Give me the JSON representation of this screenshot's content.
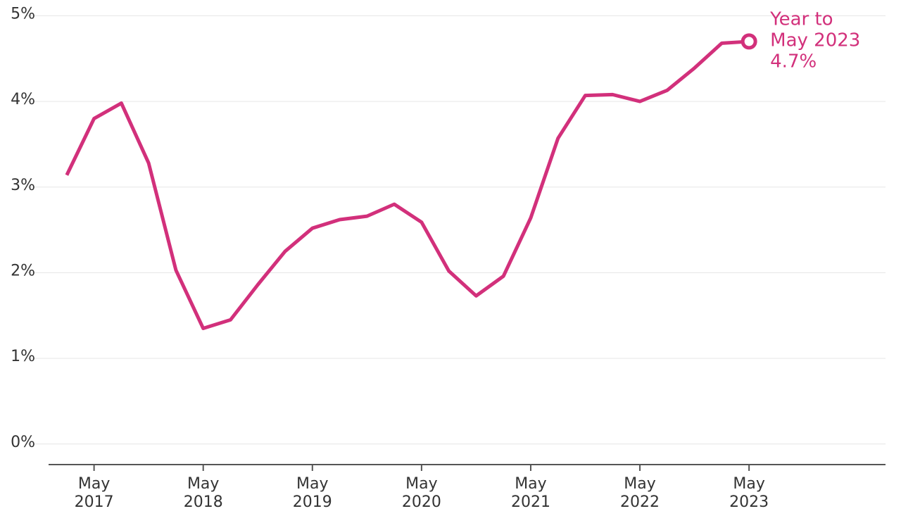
{
  "chart_data": {
    "type": "line",
    "x": [
      "2017-02",
      "2017-05",
      "2017-08",
      "2017-11",
      "2018-02",
      "2018-05",
      "2018-08",
      "2018-11",
      "2019-02",
      "2019-05",
      "2019-08",
      "2019-11",
      "2020-02",
      "2020-05",
      "2020-08",
      "2020-11",
      "2021-02",
      "2021-05",
      "2021-08",
      "2021-11",
      "2022-02",
      "2022-05",
      "2022-08",
      "2022-11",
      "2023-02",
      "2023-05"
    ],
    "series": [
      {
        "color": "#d2307b",
        "values": [
          3.14,
          3.8,
          3.98,
          3.28,
          2.03,
          1.35,
          1.45,
          1.86,
          2.25,
          2.52,
          2.62,
          2.66,
          2.8,
          2.59,
          2.02,
          1.73,
          1.96,
          2.64,
          3.57,
          4.07,
          4.08,
          4.0,
          4.13,
          4.39,
          4.68,
          4.7
        ]
      }
    ],
    "annotation": [
      "Year to",
      "May 2023",
      "4.7%"
    ],
    "xlim": [
      "2016-12",
      "2024-08"
    ],
    "xticks": [
      {
        "value": "2017-05",
        "label": "May 2017"
      },
      {
        "value": "2018-05",
        "label": "May 2018"
      },
      {
        "value": "2019-05",
        "label": "May 2019"
      },
      {
        "value": "2020-05",
        "label": "May 2020"
      },
      {
        "value": "2021-05",
        "label": "May 2021"
      },
      {
        "value": "2022-05",
        "label": "May 2022"
      },
      {
        "value": "2023-05",
        "label": "May 2023"
      }
    ],
    "ylim": [
      -0.24,
      5.02
    ],
    "yticks": [
      {
        "value": 0,
        "label": "0%"
      },
      {
        "value": 1,
        "label": "1%"
      },
      {
        "value": 2,
        "label": "2%"
      },
      {
        "value": 3,
        "label": "3%"
      },
      {
        "value": 4,
        "label": "4%"
      },
      {
        "value": 5,
        "label": "5%"
      }
    ],
    "grid": true
  }
}
